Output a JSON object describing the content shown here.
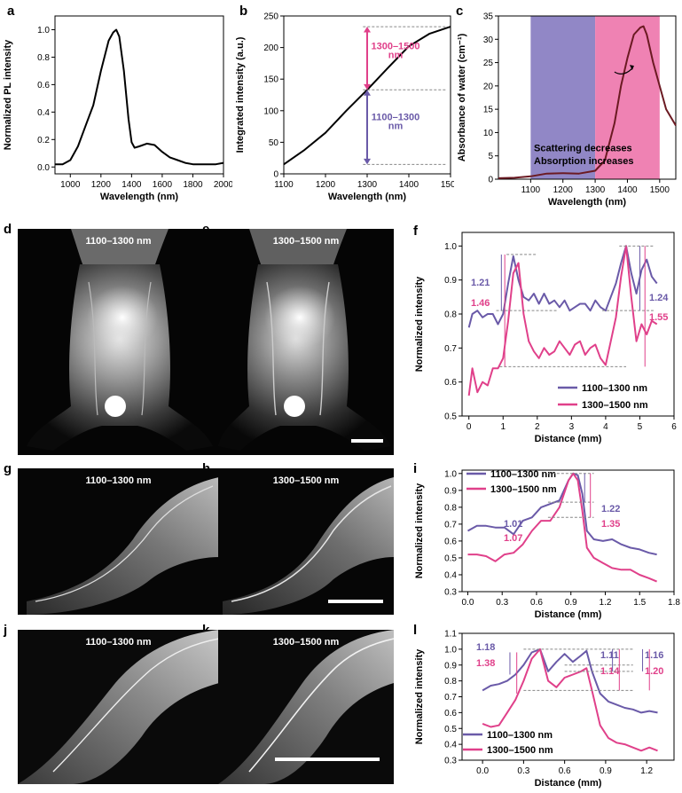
{
  "panels": {
    "a": {
      "label": "a"
    },
    "b": {
      "label": "b"
    },
    "c": {
      "label": "c"
    },
    "d": {
      "label": "d",
      "caption": "1100–1300 nm"
    },
    "e": {
      "label": "e",
      "caption": "1300–1500 nm"
    },
    "f": {
      "label": "f"
    },
    "g": {
      "label": "g",
      "caption": "1100–1300 nm"
    },
    "h": {
      "label": "h",
      "caption": "1300–1500 nm"
    },
    "i": {
      "label": "i"
    },
    "j": {
      "label": "j",
      "caption": "1100–1300 nm"
    },
    "k": {
      "label": "k",
      "caption": "1300–1500 nm"
    },
    "l": {
      "label": "l"
    }
  },
  "colors": {
    "purple": "#6a5aa8",
    "pink": "#e0408a",
    "dark_red": "#6b1a22",
    "band_purple": "#9187c6",
    "band_pink": "#ef82b3"
  },
  "chart_data": [
    {
      "id": "a",
      "type": "line",
      "xlabel": "Wavelength (nm)",
      "ylabel": "Normalized PL intensity",
      "xlim": [
        900,
        2000
      ],
      "ylim": [
        -0.05,
        1.1
      ],
      "xticks": [
        1000,
        1200,
        1400,
        1600,
        1800,
        2000
      ],
      "yticks": [
        0.0,
        0.2,
        0.4,
        0.6,
        0.8,
        1.0
      ],
      "ytick_labels": [
        "0.0",
        "0.2",
        "0.4",
        "0.6",
        "0.8",
        "1.0"
      ],
      "x": [
        900,
        950,
        1000,
        1050,
        1100,
        1150,
        1200,
        1250,
        1280,
        1300,
        1320,
        1350,
        1380,
        1400,
        1420,
        1450,
        1500,
        1550,
        1600,
        1650,
        1700,
        1750,
        1800,
        1850,
        1900,
        1950,
        2000
      ],
      "y": [
        0.02,
        0.02,
        0.05,
        0.15,
        0.3,
        0.45,
        0.7,
        0.92,
        0.98,
        1.0,
        0.95,
        0.7,
        0.35,
        0.18,
        0.14,
        0.15,
        0.17,
        0.16,
        0.11,
        0.07,
        0.05,
        0.03,
        0.02,
        0.02,
        0.02,
        0.02,
        0.03
      ]
    },
    {
      "id": "b",
      "type": "line",
      "xlabel": "Wavelength (nm)",
      "ylabel": "Integrated intensity (a.u.)",
      "xlim": [
        1100,
        1500
      ],
      "ylim": [
        0,
        250
      ],
      "xticks": [
        1100,
        1200,
        1300,
        1400,
        1500
      ],
      "yticks": [
        0,
        50,
        100,
        150,
        200,
        250
      ],
      "x": [
        1100,
        1150,
        1200,
        1250,
        1300,
        1350,
        1400,
        1450,
        1500
      ],
      "y": [
        15,
        38,
        65,
        100,
        133,
        168,
        202,
        222,
        233
      ],
      "annotations": [
        "1300–1500 nm",
        "1100–1300 nm"
      ]
    },
    {
      "id": "c",
      "type": "line",
      "xlabel": "Wavelength (nm)",
      "ylabel": "Absorbance of water (cm⁻¹)",
      "xlim": [
        1000,
        1550
      ],
      "ylim": [
        0,
        35
      ],
      "xticks": [
        1100,
        1200,
        1300,
        1400,
        1500
      ],
      "yticks": [
        0,
        5,
        10,
        15,
        20,
        25,
        30,
        35
      ],
      "bands": [
        {
          "from": 1100,
          "to": 1300,
          "color": "#9187c6"
        },
        {
          "from": 1300,
          "to": 1500,
          "color": "#ef82b3"
        }
      ],
      "x": [
        1000,
        1050,
        1100,
        1150,
        1200,
        1250,
        1300,
        1330,
        1360,
        1380,
        1400,
        1420,
        1440,
        1450,
        1460,
        1480,
        1500,
        1520,
        1550
      ],
      "y": [
        0.2,
        0.3,
        0.6,
        1.2,
        1.3,
        1.2,
        1.8,
        4,
        12,
        20,
        26,
        31,
        32.5,
        32.8,
        31,
        25,
        20,
        15,
        11.5
      ],
      "annotations": [
        "Scattering decreases",
        "Absorption increases"
      ]
    },
    {
      "id": "f",
      "type": "line",
      "xlabel": "Distance (mm)",
      "ylabel": "Normalized intensity",
      "xlim": [
        -0.2,
        6
      ],
      "ylim": [
        0.5,
        1.04
      ],
      "xticks": [
        0,
        1,
        2,
        3,
        4,
        5,
        6
      ],
      "yticks": [
        0.5,
        0.6,
        0.7,
        0.8,
        0.9,
        1.0
      ],
      "ytick_labels": [
        "0.5",
        "0.6",
        "0.7",
        "0.8",
        "0.9",
        "1.0"
      ],
      "series": [
        {
          "name": "1100–1300 nm",
          "color": "#6a5aa8",
          "x": [
            0,
            0.1,
            0.25,
            0.4,
            0.55,
            0.7,
            0.85,
            1.0,
            1.15,
            1.3,
            1.45,
            1.6,
            1.75,
            1.9,
            2.05,
            2.2,
            2.35,
            2.5,
            2.65,
            2.8,
            2.95,
            3.1,
            3.25,
            3.4,
            3.55,
            3.7,
            3.85,
            4.0,
            4.15,
            4.3,
            4.45,
            4.6,
            4.75,
            4.9,
            5.05,
            5.2,
            5.35,
            5.5
          ],
          "y": [
            0.76,
            0.8,
            0.81,
            0.79,
            0.8,
            0.8,
            0.77,
            0.8,
            0.89,
            0.97,
            0.9,
            0.85,
            0.84,
            0.86,
            0.83,
            0.86,
            0.83,
            0.84,
            0.82,
            0.84,
            0.81,
            0.82,
            0.83,
            0.83,
            0.81,
            0.84,
            0.82,
            0.81,
            0.85,
            0.89,
            0.95,
            1.0,
            0.92,
            0.86,
            0.93,
            0.96,
            0.91,
            0.89
          ]
        },
        {
          "name": "1300–1500 nm",
          "color": "#e0408a",
          "x": [
            0,
            0.1,
            0.25,
            0.4,
            0.55,
            0.7,
            0.85,
            1.0,
            1.15,
            1.3,
            1.45,
            1.6,
            1.75,
            1.9,
            2.05,
            2.2,
            2.35,
            2.5,
            2.65,
            2.8,
            2.95,
            3.1,
            3.25,
            3.4,
            3.55,
            3.7,
            3.85,
            4.0,
            4.15,
            4.3,
            4.45,
            4.6,
            4.75,
            4.9,
            5.05,
            5.2,
            5.35,
            5.5
          ],
          "y": [
            0.56,
            0.64,
            0.57,
            0.6,
            0.59,
            0.64,
            0.64,
            0.67,
            0.78,
            0.92,
            0.95,
            0.8,
            0.72,
            0.69,
            0.67,
            0.7,
            0.68,
            0.69,
            0.72,
            0.7,
            0.68,
            0.71,
            0.72,
            0.68,
            0.7,
            0.71,
            0.67,
            0.65,
            0.72,
            0.79,
            0.91,
            1.0,
            0.85,
            0.72,
            0.77,
            0.74,
            0.78,
            0.77
          ]
        }
      ],
      "legend": "bottom-right",
      "annotations": [
        {
          "text": "1.21",
          "color": "#6a5aa8"
        },
        {
          "text": "1.46",
          "color": "#e0408a"
        },
        {
          "text": "1.24",
          "color": "#6a5aa8"
        },
        {
          "text": "1.55",
          "color": "#e0408a"
        }
      ]
    },
    {
      "id": "i",
      "type": "line",
      "xlabel": "Distance (mm)",
      "ylabel": "Normalized intensity",
      "xlim": [
        -0.05,
        1.8
      ],
      "ylim": [
        0.3,
        1.02
      ],
      "xticks": [
        0.0,
        0.3,
        0.6,
        0.9,
        1.2,
        1.5,
        1.8
      ],
      "xtick_labels": [
        "0.0",
        "0.3",
        "0.6",
        "0.9",
        "1.2",
        "1.5",
        "1.8"
      ],
      "yticks": [
        0.3,
        0.4,
        0.5,
        0.6,
        0.7,
        0.8,
        0.9,
        1.0
      ],
      "ytick_labels": [
        "0.3",
        "0.4",
        "0.5",
        "0.6",
        "0.7",
        "0.8",
        "0.9",
        "1.0"
      ],
      "series": [
        {
          "name": "1100–1300 nm",
          "color": "#6a5aa8",
          "x": [
            0.0,
            0.08,
            0.16,
            0.24,
            0.32,
            0.4,
            0.48,
            0.56,
            0.64,
            0.72,
            0.8,
            0.88,
            0.92,
            0.96,
            1.0,
            1.04,
            1.1,
            1.18,
            1.26,
            1.34,
            1.42,
            1.5,
            1.58,
            1.65
          ],
          "y": [
            0.66,
            0.69,
            0.69,
            0.68,
            0.68,
            0.64,
            0.72,
            0.74,
            0.8,
            0.82,
            0.84,
            0.96,
            1.0,
            0.99,
            0.88,
            0.66,
            0.61,
            0.6,
            0.61,
            0.58,
            0.56,
            0.55,
            0.53,
            0.52
          ]
        },
        {
          "name": "1300–1500 nm",
          "color": "#e0408a",
          "x": [
            0.0,
            0.08,
            0.16,
            0.24,
            0.32,
            0.4,
            0.48,
            0.56,
            0.64,
            0.72,
            0.8,
            0.88,
            0.92,
            0.96,
            1.0,
            1.04,
            1.1,
            1.18,
            1.26,
            1.34,
            1.42,
            1.5,
            1.58,
            1.65
          ],
          "y": [
            0.52,
            0.52,
            0.51,
            0.48,
            0.52,
            0.53,
            0.58,
            0.66,
            0.72,
            0.72,
            0.8,
            0.96,
            1.0,
            0.96,
            0.78,
            0.56,
            0.5,
            0.47,
            0.44,
            0.43,
            0.43,
            0.4,
            0.38,
            0.36
          ]
        }
      ],
      "legend": "top-left",
      "annotations": [
        {
          "text": "1.01",
          "color": "#6a5aa8"
        },
        {
          "text": "1.07",
          "color": "#e0408a"
        },
        {
          "text": "1.22",
          "color": "#6a5aa8"
        },
        {
          "text": "1.35",
          "color": "#e0408a"
        }
      ]
    },
    {
      "id": "l",
      "type": "line",
      "xlabel": "Distance (mm)",
      "ylabel": "Normalized intensity",
      "xlim": [
        -0.15,
        1.4
      ],
      "ylim": [
        0.3,
        1.1
      ],
      "xticks": [
        0.0,
        0.3,
        0.6,
        0.9,
        1.2
      ],
      "xtick_labels": [
        "0.0",
        "0.3",
        "0.6",
        "0.9",
        "1.2"
      ],
      "yticks": [
        0.3,
        0.4,
        0.5,
        0.6,
        0.7,
        0.8,
        0.9,
        1.0,
        1.1
      ],
      "ytick_labels": [
        "0.3",
        "0.4",
        "0.5",
        "0.6",
        "0.7",
        "0.8",
        "0.9",
        "1.0",
        "1.1"
      ],
      "series": [
        {
          "name": "1100–1300 nm",
          "color": "#6a5aa8",
          "x": [
            0.0,
            0.06,
            0.12,
            0.18,
            0.24,
            0.3,
            0.36,
            0.42,
            0.48,
            0.54,
            0.6,
            0.66,
            0.72,
            0.76,
            0.8,
            0.86,
            0.92,
            0.98,
            1.04,
            1.1,
            1.16,
            1.22,
            1.28
          ],
          "y": [
            0.74,
            0.77,
            0.78,
            0.8,
            0.84,
            0.9,
            0.98,
            1.0,
            0.86,
            0.92,
            0.97,
            0.92,
            0.96,
            0.99,
            0.86,
            0.72,
            0.67,
            0.65,
            0.63,
            0.62,
            0.6,
            0.61,
            0.6
          ]
        },
        {
          "name": "1300–1500 nm",
          "color": "#e0408a",
          "x": [
            0.0,
            0.06,
            0.12,
            0.18,
            0.24,
            0.3,
            0.36,
            0.42,
            0.48,
            0.54,
            0.6,
            0.66,
            0.72,
            0.76,
            0.8,
            0.86,
            0.92,
            0.98,
            1.04,
            1.1,
            1.16,
            1.22,
            1.28
          ],
          "y": [
            0.53,
            0.51,
            0.52,
            0.6,
            0.68,
            0.8,
            0.94,
            1.0,
            0.8,
            0.76,
            0.82,
            0.84,
            0.86,
            0.88,
            0.74,
            0.52,
            0.44,
            0.41,
            0.4,
            0.38,
            0.36,
            0.38,
            0.36
          ]
        }
      ],
      "legend": "bottom-left",
      "annotations": [
        {
          "text": "1.18",
          "color": "#6a5aa8"
        },
        {
          "text": "1.38",
          "color": "#e0408a"
        },
        {
          "text": "1.11",
          "color": "#6a5aa8"
        },
        {
          "text": "1.14",
          "color": "#e0408a"
        },
        {
          "text": "1.16",
          "color": "#6a5aa8"
        },
        {
          "text": "1.20",
          "color": "#e0408a"
        }
      ]
    }
  ]
}
